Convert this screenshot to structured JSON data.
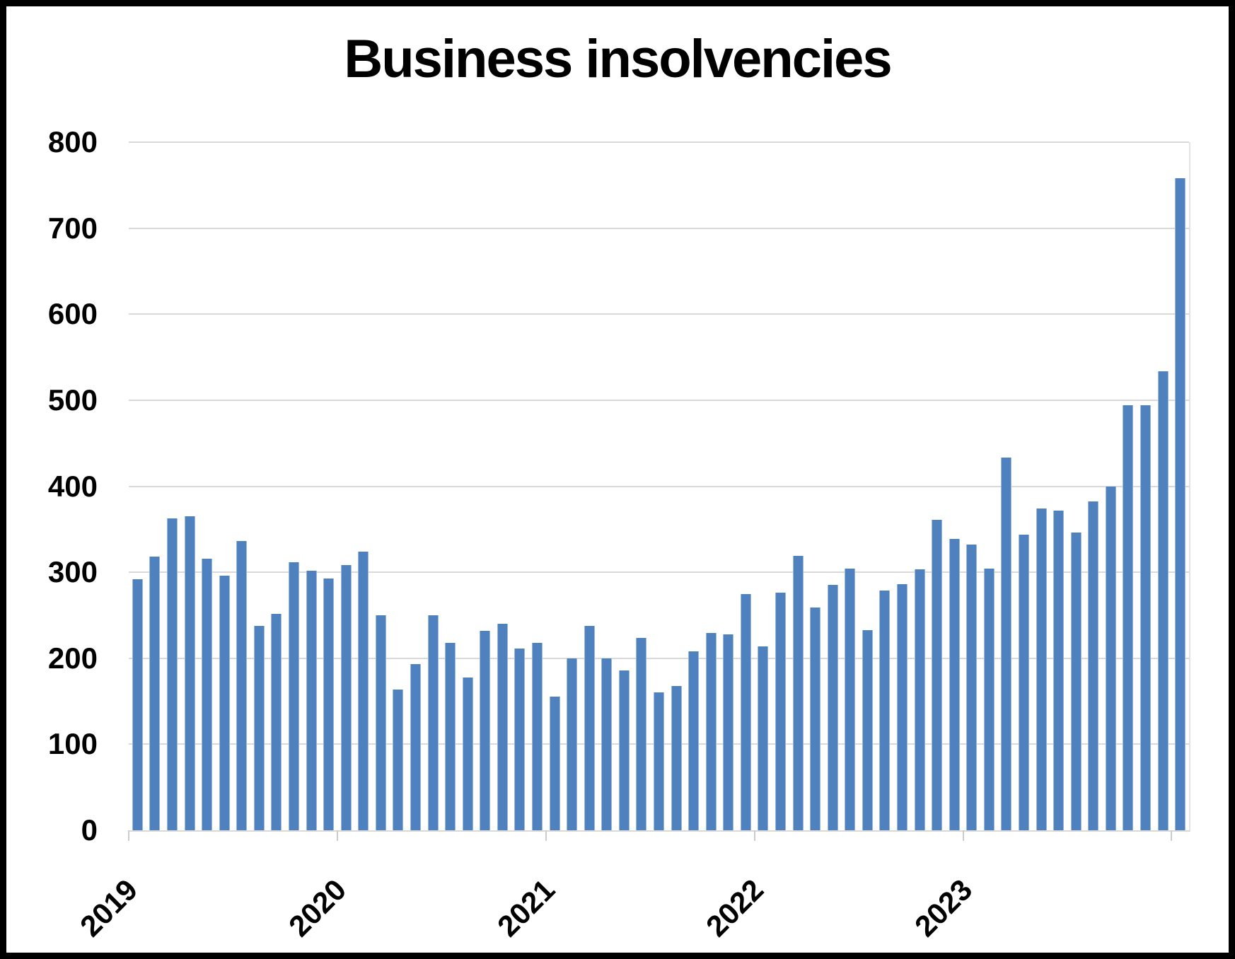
{
  "title": "Business insolvencies",
  "colors": {
    "bar": "#4e81bd",
    "bar_edge": "#9ab7dc",
    "gridline": "#d9d9d9",
    "axis_tick": "#cccccc",
    "text": "#000000",
    "frame_border": "#000000",
    "background": "#ffffff"
  },
  "chart_data": {
    "type": "bar",
    "title": "Business insolvencies",
    "xlabel": "",
    "ylabel": "",
    "grid": "horizontal",
    "legend": "none",
    "x_axis": {
      "visible_tick_labels": [
        "2019",
        "2020",
        "2021",
        "2022",
        "2023"
      ],
      "frequency": "monthly",
      "start_month": "2019-01",
      "end_month": "2024-01",
      "note_last_tick_unlabeled": true
    },
    "y_axis": {
      "min": 0,
      "max": 800,
      "tick_interval": 100,
      "tick_labels": [
        "0",
        "100",
        "200",
        "300",
        "400",
        "500",
        "600",
        "700",
        "800"
      ]
    },
    "series": [
      {
        "name": "Business insolvencies",
        "values": [
          292,
          318,
          363,
          365,
          316,
          296,
          336,
          238,
          252,
          312,
          302,
          293,
          308,
          324,
          250,
          164,
          193,
          250,
          218,
          178,
          232,
          240,
          211,
          218,
          155,
          200,
          238,
          200,
          186,
          224,
          160,
          168,
          208,
          229,
          228,
          275,
          214,
          276,
          319,
          259,
          285,
          304,
          233,
          279,
          286,
          303,
          361,
          339,
          332,
          304,
          433,
          344,
          374,
          372,
          346,
          382,
          400,
          494,
          494,
          534,
          758
        ]
      }
    ]
  }
}
